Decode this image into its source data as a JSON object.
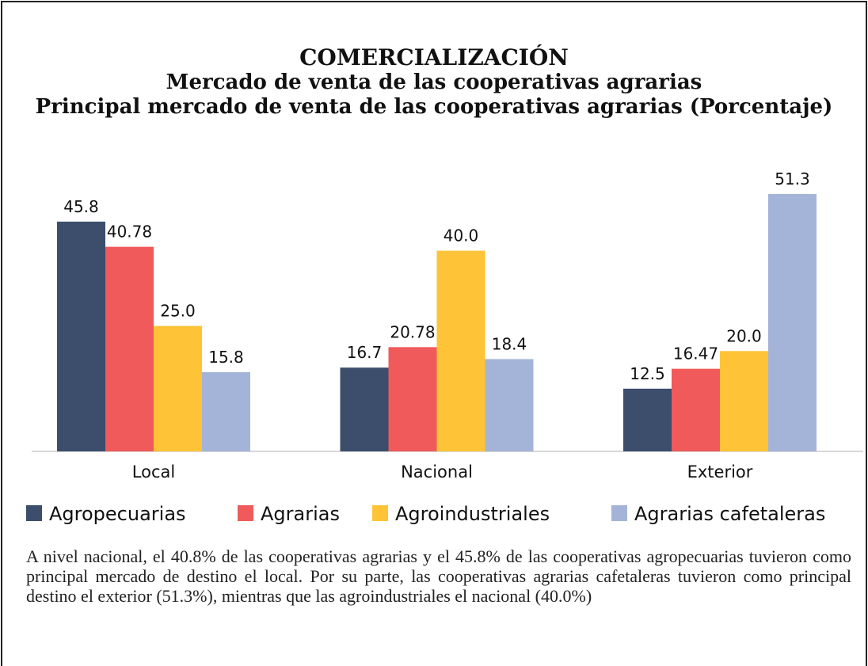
{
  "chart_data": {
    "type": "bar",
    "title": "COMERCIALIZACIÓN",
    "subtitle": "Mercado de venta de las cooperativas agrarias",
    "subtitle2": "Principal mercado de venta de las cooperativas agrarias (Porcentaje)",
    "categories": [
      "Local",
      "Nacional",
      "Exterior"
    ],
    "series": [
      {
        "name": "Agropecuarias",
        "color": "#3c4e6b",
        "values": [
          45.8,
          16.7,
          12.5
        ],
        "value_labels": [
          "45.8",
          "16.7",
          "12.5"
        ]
      },
      {
        "name": "Agrarias",
        "color": "#f05a5a",
        "values": [
          40.78,
          20.78,
          16.47
        ],
        "value_labels": [
          "40.78",
          "20.78",
          "16.47"
        ]
      },
      {
        "name": "Agroindustriales",
        "color": "#fec336",
        "values": [
          25,
          40,
          20
        ],
        "value_labels": [
          "25.0",
          "40.0",
          "20.0"
        ]
      },
      {
        "name": "Agrarias cafetaleras",
        "color": "#a4b4d8",
        "values": [
          15.8,
          18.4,
          51.3
        ],
        "value_labels": [
          "15.8",
          "18.4",
          "51.3"
        ]
      }
    ],
    "note": "A nivel nacional, el 40.8% de las cooperativas agrarias y el 45.8% de las cooperativas agropecuarias tuvieron como principal mercado de destino el local. Por su parte, las cooperativas agrarias cafetaleras tuvieron como principal destino el exterior (51.3%), mientras que las agroindustriales el nacional (40.0%)"
  }
}
